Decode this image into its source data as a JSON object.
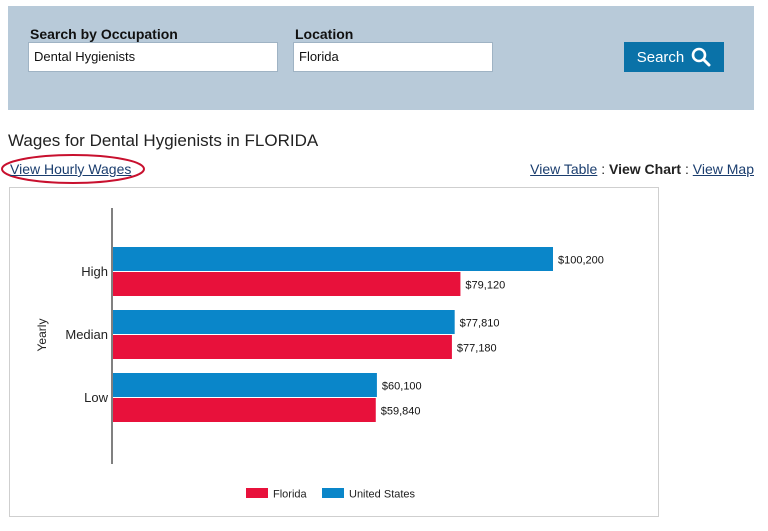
{
  "search": {
    "occupation_label": "Search by Occupation",
    "occupation_value": "Dental Hygienists",
    "location_label": "Location",
    "location_value": "Florida",
    "button_label": "Search"
  },
  "page": {
    "title": "Wages for Dental Hygienists in FLORIDA",
    "hourly_link": "View Hourly Wages"
  },
  "view_links": {
    "table": "View Table",
    "chart": "View Chart",
    "map": "View Map",
    "separator": ":"
  },
  "colors": {
    "florida": "#e8113b",
    "united_states": "#0a86c9",
    "search_panel": "#b8cad9",
    "button": "#0a72a8",
    "highlight_ellipse": "#c8102e"
  },
  "chart_data": {
    "type": "bar",
    "orientation": "horizontal",
    "ylabel": "Yearly",
    "categories": [
      "High",
      "Median",
      "Low"
    ],
    "series": [
      {
        "name": "United States",
        "values": [
          100200,
          77810,
          60100
        ],
        "labels": [
          "$100,200",
          "$77,810",
          "$60,100"
        ]
      },
      {
        "name": "Florida",
        "values": [
          79120,
          77180,
          59840
        ],
        "labels": [
          "$79,120",
          "$77,180",
          "$59,840"
        ]
      }
    ],
    "legend": [
      "Florida",
      "United States"
    ],
    "legend_position": "bottom",
    "xlim": [
      0,
      100200
    ],
    "grid": false
  }
}
